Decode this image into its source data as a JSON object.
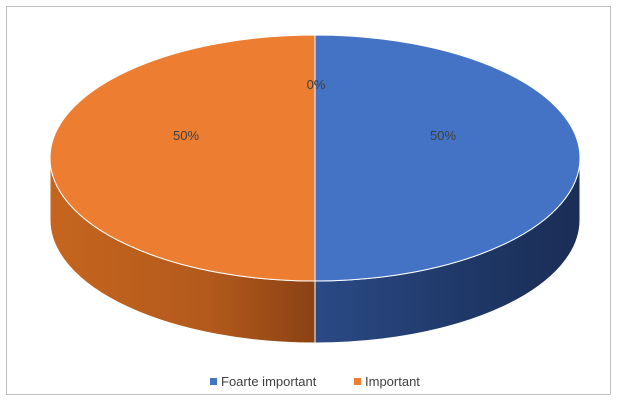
{
  "chart_data": {
    "type": "pie",
    "style": "3d",
    "title": "",
    "categories": [
      "Foarte important",
      "Important",
      ""
    ],
    "values": [
      50,
      50,
      0
    ],
    "data_labels": [
      "50%",
      "50%",
      "0%"
    ],
    "colors": [
      "#4472c4",
      "#ed7d31",
      "#a5a5a5"
    ],
    "legend": {
      "placement": "bottom",
      "entries": [
        {
          "label": "Foarte important",
          "color": "#4472c4"
        },
        {
          "label": "Important",
          "color": "#ed7d31"
        }
      ]
    }
  }
}
